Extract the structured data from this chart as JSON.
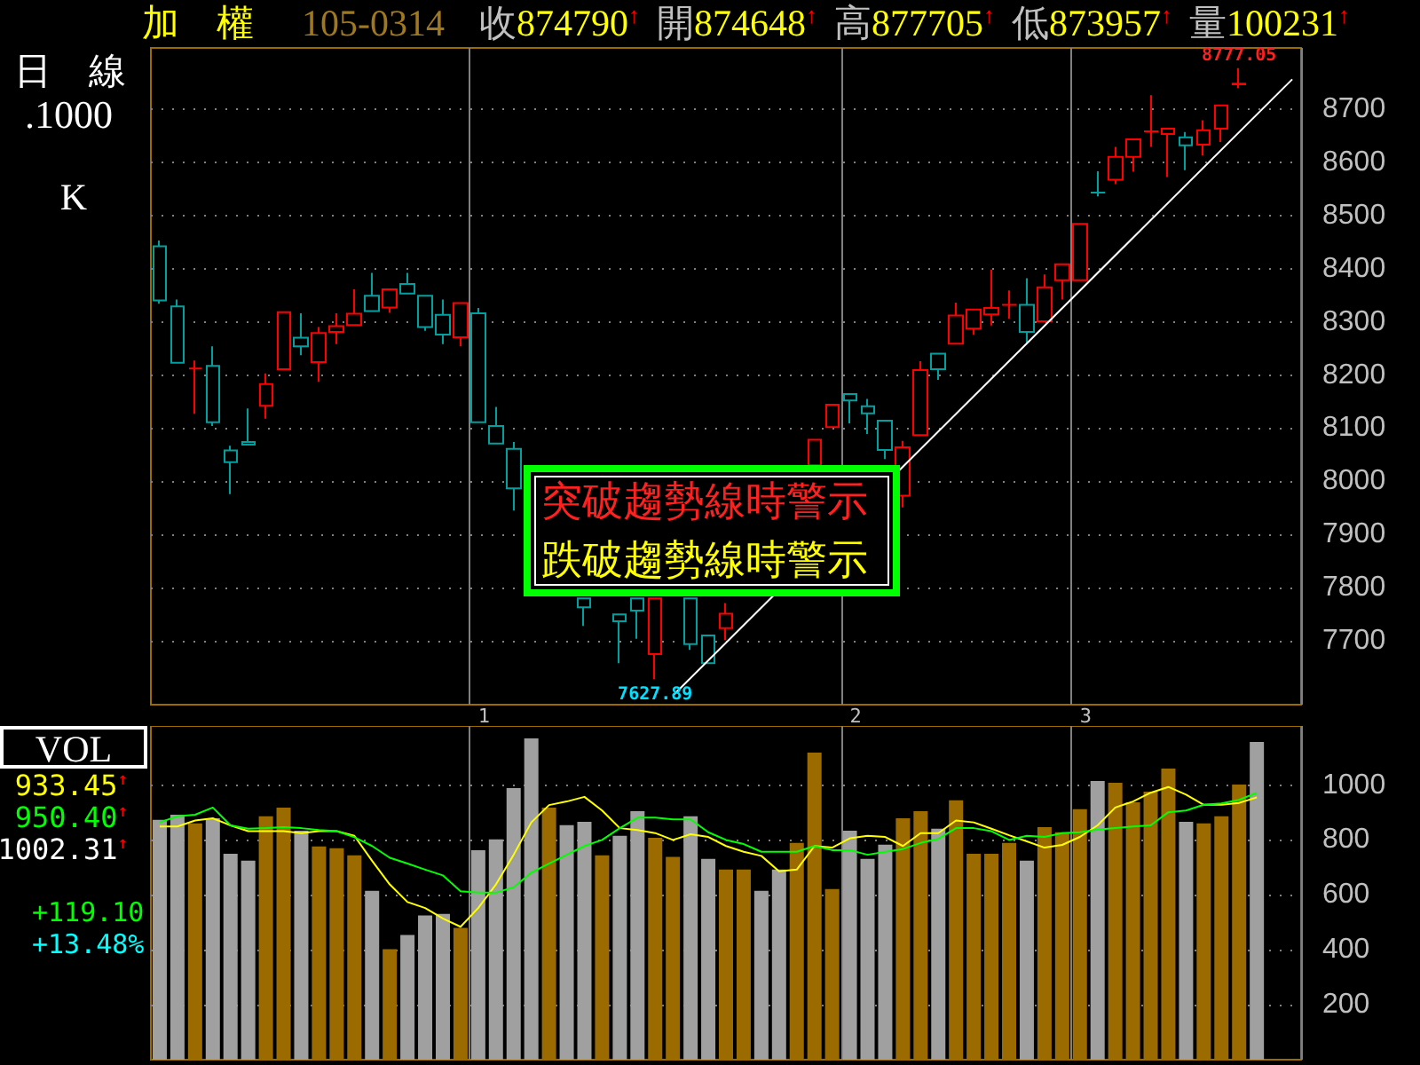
{
  "chart_data": [
    {
      "type": "candlestick",
      "title": "加　權",
      "subtitle": "105-0314",
      "categories": [
        null,
        null,
        null,
        null,
        null,
        null,
        null,
        null,
        null,
        null,
        null,
        null,
        null,
        null,
        null,
        null,
        null,
        null,
        "1",
        null,
        null,
        null,
        null,
        null,
        null,
        null,
        null,
        null,
        null,
        null,
        null,
        null,
        null,
        null,
        null,
        null,
        null,
        null,
        null,
        "2",
        null,
        null,
        null,
        null,
        null,
        null,
        null,
        null,
        null,
        null,
        null,
        null,
        "3",
        null,
        null,
        null,
        null,
        null,
        null,
        null,
        null,
        null,
        null,
        null,
        null
      ],
      "ohlc": [
        [
          8442,
          8453,
          8334,
          8340
        ],
        [
          8329,
          8342,
          8223,
          8223
        ],
        [
          8212,
          8227,
          8127,
          8212
        ],
        [
          8217,
          8254,
          8104,
          8111
        ],
        [
          8058,
          8067,
          7976,
          8036
        ],
        [
          8074,
          8137,
          8069,
          8069
        ],
        [
          8142,
          8203,
          8118,
          8183
        ],
        [
          8211,
          8318,
          8211,
          8318
        ],
        [
          8270,
          8316,
          8237,
          8254
        ],
        [
          8224,
          8290,
          8187,
          8279
        ],
        [
          8281,
          8316,
          8258,
          8292
        ],
        [
          8294,
          8361,
          8294,
          8315
        ],
        [
          8349,
          8392,
          8320,
          8320
        ],
        [
          8327,
          8361,
          8317,
          8361
        ],
        [
          8371,
          8392,
          8353,
          8353
        ],
        [
          8349,
          8349,
          8283,
          8290
        ],
        [
          8313,
          8342,
          8258,
          8276
        ],
        [
          8271,
          8335,
          8254,
          8335
        ],
        [
          8316,
          8326,
          8111,
          8111
        ],
        [
          8104,
          8140,
          8071,
          8071
        ],
        [
          8061,
          8074,
          7945,
          7987
        ],
        null,
        null,
        null,
        [
          7780,
          7780,
          7728,
          7763
        ],
        null,
        [
          7750,
          7750,
          7658,
          7737
        ],
        [
          7780,
          7780,
          7704,
          7757
        ],
        [
          7675,
          7780,
          7627.89,
          7780
        ],
        null,
        [
          7780,
          7780,
          7683,
          7694
        ],
        [
          7710,
          7710,
          7658,
          7658
        ],
        [
          7724,
          7771,
          7702,
          7751
        ],
        null,
        null,
        null,
        null,
        [
          8030,
          8078,
          8030,
          8078
        ],
        [
          8102,
          8144,
          8102,
          8144
        ],
        [
          8164,
          8164,
          8109,
          8152
        ],
        [
          8141,
          8155,
          8089,
          8128
        ],
        [
          8114,
          8114,
          8042,
          8059
        ],
        [
          7973,
          8076,
          7951,
          8064
        ],
        [
          8087,
          8226,
          8087,
          8209
        ],
        [
          8240,
          8240,
          8191,
          8211
        ],
        [
          8259,
          8336,
          8259,
          8312
        ],
        [
          8287,
          8323,
          8276,
          8323
        ],
        [
          8314,
          8398,
          8293,
          8326
        ],
        [
          8332,
          8359,
          8306,
          8332
        ],
        [
          8332,
          8382,
          8258,
          8281
        ],
        [
          8301,
          8389,
          8301,
          8365
        ],
        [
          8378,
          8408,
          8342,
          8408
        ],
        [
          8378,
          8484,
          8378,
          8484
        ],
        [
          8543,
          8583,
          8536,
          8543
        ],
        [
          8567,
          8629,
          8559,
          8610
        ],
        [
          8610,
          8643,
          8582,
          8643
        ],
        [
          8658,
          8726,
          8629,
          8658
        ],
        [
          8653,
          8663,
          8572,
          8663
        ],
        [
          8647,
          8657,
          8585,
          8632
        ],
        [
          8633,
          8679,
          8613,
          8660
        ],
        [
          8663,
          8707,
          8638,
          8707
        ],
        [
          8746.48,
          8777.05,
          8739.57,
          8747.9
        ],
        null,
        null,
        null
      ],
      "colors": [
        "#00a0a0",
        "#00a0a0",
        "#ff0000",
        "#00a0a0",
        "#00a0a0",
        "#00a0a0",
        "#ff0000",
        "#ff0000",
        "#00a0a0",
        "#ff0000",
        "#ff0000",
        "#ff0000",
        "#00a0a0",
        "#ff0000",
        "#00a0a0",
        "#00a0a0",
        "#00a0a0",
        "#ff0000",
        "#00a0a0",
        "#00a0a0",
        "#00a0a0",
        null,
        null,
        null,
        "#00a0a0",
        null,
        "#00a0a0",
        "#00a0a0",
        "#ff0000",
        null,
        "#00a0a0",
        "#00a0a0",
        "#ff0000",
        null,
        null,
        null,
        null,
        "#ff0000",
        "#ff0000",
        "#00a0a0",
        "#00a0a0",
        "#00a0a0",
        "#ff0000",
        "#ff0000",
        "#00a0a0",
        "#ff0000",
        "#ff0000",
        "#ff0000",
        "#ff0000",
        "#00a0a0",
        "#ff0000",
        "#ff0000",
        "#ff0000",
        "#00a0a0",
        "#ff0000",
        "#ff0000",
        "#ff0000",
        "#ff0000",
        "#00a0a0",
        "#ff0000",
        "#ff0000",
        "#ff0000",
        null,
        null,
        null
      ],
      "series": [
        {
          "type": "line",
          "color": "#ffffff",
          "values": [
            null,
            null,
            null,
            null,
            null,
            null,
            null,
            null,
            null,
            null,
            null,
            null,
            null,
            null,
            null,
            null,
            null,
            null,
            null,
            null,
            null,
            null,
            null,
            null,
            null,
            null,
            null,
            null,
            null,
            7597,
            null,
            null,
            null,
            null,
            null,
            null,
            null,
            null,
            null,
            null,
            null,
            null,
            null,
            null,
            null,
            null,
            null,
            null,
            null,
            null,
            null,
            null,
            null,
            null,
            null,
            null,
            null,
            null,
            null,
            null,
            null,
            null,
            null,
            null,
            8756
          ]
        }
      ],
      "ylim": [
        7580,
        8815
      ],
      "yticks": [
        7700,
        7800,
        7900,
        8000,
        8100,
        8200,
        8300,
        8400,
        8500,
        8600,
        8700
      ],
      "grid": true,
      "marker": "none",
      "annotations": [
        "收874790↑",
        "開874648↑",
        "高877705↑",
        "低873957↑",
        "量100231↑",
        "日　線",
        ".1000",
        "K",
        "突破趨勢線時警示",
        "跌破趨勢線時警示",
        {
          "text": "7627.89",
          "y": 7627.89
        },
        {
          "text": "8777.05",
          "y": 8777.05
        }
      ]
    },
    {
      "type": "bar",
      "title": "VOL",
      "categories": [
        null,
        null,
        null,
        null,
        null,
        null,
        null,
        null,
        null,
        null,
        null,
        null,
        null,
        null,
        null,
        null,
        null,
        null,
        "1",
        null,
        null,
        null,
        null,
        null,
        null,
        null,
        null,
        null,
        null,
        null,
        null,
        null,
        null,
        null,
        null,
        null,
        null,
        null,
        null,
        "2",
        null,
        null,
        null,
        null,
        null,
        null,
        null,
        null,
        null,
        null,
        null,
        null,
        "3",
        null,
        null,
        null,
        null,
        null,
        null,
        null,
        null,
        null,
        null,
        null,
        null
      ],
      "series": [
        {
          "values": [
            873,
            892,
            860,
            879,
            750,
            725,
            886,
            918,
            834,
            776,
            770,
            744,
            615,
            402,
            454,
            525,
            531,
            480,
            763,
            802,
            989,
            1170,
            918,
            854,
            866,
            744,
            815,
            905,
            808,
            738,
            886,
            731,
            692,
            692,
            615,
            692,
            789,
            1118,
            621,
            834,
            731,
            783,
            879,
            905,
            841,
            944,
            750,
            750,
            789,
            725,
            847,
            828,
            912,
            1015,
            1008,
            937,
            976,
            1060,
            866,
            860,
            886,
            1002,
            1157,
            null,
            null
          ],
          "colors": [
            "#a0a0a0",
            "#a0a0a0",
            "#9c6b00",
            "#a0a0a0",
            "#a0a0a0",
            "#a0a0a0",
            "#9c6b00",
            "#9c6b00",
            "#a0a0a0",
            "#9c6b00",
            "#9c6b00",
            "#9c6b00",
            "#a0a0a0",
            "#9c6b00",
            "#a0a0a0",
            "#a0a0a0",
            "#a0a0a0",
            "#9c6b00",
            "#a0a0a0",
            "#a0a0a0",
            "#a0a0a0",
            "#a0a0a0",
            "#9c6b00",
            "#a0a0a0",
            "#a0a0a0",
            "#9c6b00",
            "#a0a0a0",
            "#a0a0a0",
            "#9c6b00",
            "#9c6b00",
            "#a0a0a0",
            "#a0a0a0",
            "#9c6b00",
            "#9c6b00",
            "#a0a0a0",
            "#a0a0a0",
            "#9c6b00",
            "#9c6b00",
            "#9c6b00",
            "#a0a0a0",
            "#a0a0a0",
            "#a0a0a0",
            "#9c6b00",
            "#9c6b00",
            "#a0a0a0",
            "#9c6b00",
            "#9c6b00",
            "#9c6b00",
            "#9c6b00",
            "#a0a0a0",
            "#9c6b00",
            "#9c6b00",
            "#9c6b00",
            "#a0a0a0",
            "#9c6b00",
            "#9c6b00",
            "#9c6b00",
            "#9c6b00",
            "#a0a0a0",
            "#9c6b00",
            "#9c6b00",
            "#9c6b00",
            "#a0a0a0",
            null,
            null
          ]
        },
        {
          "type": "line",
          "color": "#ffff00",
          "values": [
            849,
            849,
            871,
            879,
            853,
            832,
            832,
            832,
            825,
            832,
            832,
            815,
            724,
            638,
            574,
            552,
            514,
            484,
            552,
            638,
            746,
            864,
            927,
            940,
            957,
            907,
            843,
            836,
            825,
            800,
            821,
            811,
            778,
            757,
            742,
            686,
            692,
            778,
            772,
            806,
            815,
            811,
            778,
            825,
            825,
            871,
            864,
            841,
            817,
            795,
            772,
            782,
            811,
            853,
            918,
            940,
            972,
            993,
            965,
            928,
            928,
            935,
            955,
            null,
            null
          ]
        },
        {
          "type": "line",
          "color": "#00ff00",
          "values": [
            864,
            886,
            892,
            918,
            853,
            841,
            843,
            847,
            843,
            836,
            832,
            810,
            778,
            735,
            714,
            692,
            671,
            613,
            608,
            608,
            628,
            681,
            714,
            746,
            778,
            800,
            843,
            881,
            881,
            875,
            875,
            828,
            800,
            785,
            757,
            757,
            757,
            778,
            763,
            763,
            746,
            757,
            767,
            789,
            804,
            843,
            843,
            832,
            800,
            815,
            811,
            825,
            828,
            838,
            843,
            849,
            853,
            901,
            907,
            928,
            933,
            946,
            972,
            null,
            null
          ]
        }
      ],
      "ylim": [
        0,
        1215
      ],
      "yticks": [
        200,
        400,
        600,
        800,
        1000
      ],
      "grid": true,
      "tick_labels": "y",
      "marker": "none",
      "annotations": [
        "933.45↑",
        "950.40↑",
        "1002.31↑",
        "+119.10",
        "+13.48%"
      ]
    }
  ]
}
